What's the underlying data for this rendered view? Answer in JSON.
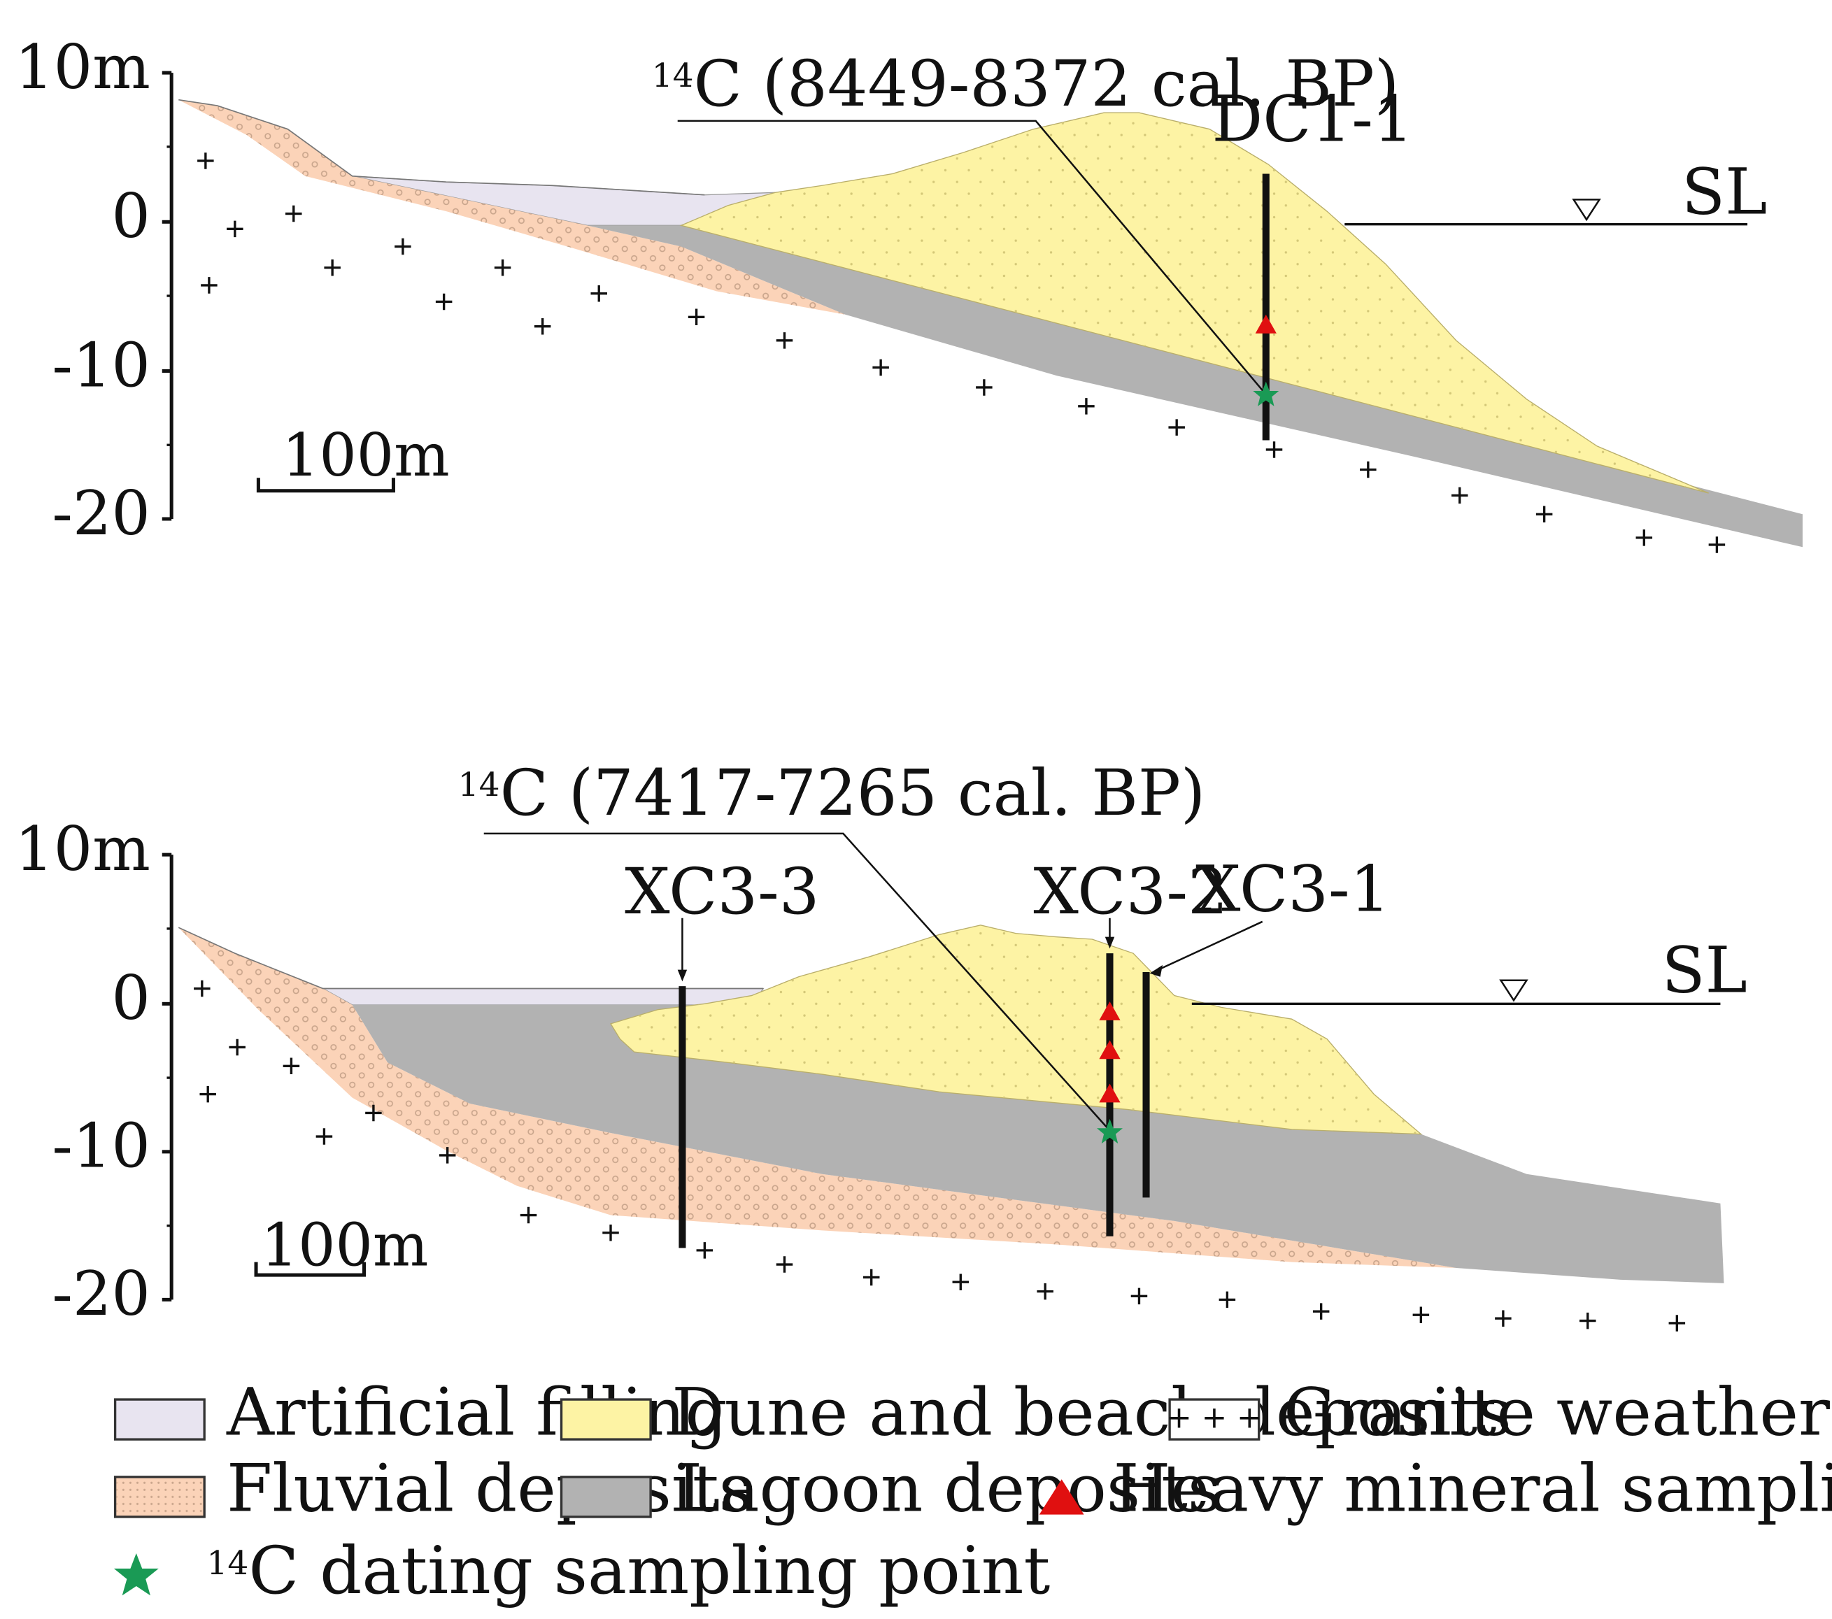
{
  "colors": {
    "artificial_filling": "#e8e4f0",
    "fluvial_deposits": "#fbd3b8",
    "fluvial_dots": "#c9a58c",
    "dune_beach": "#fdf3a4",
    "dune_dots": "#d4c878",
    "lagoon": "#b2b2b2",
    "heavy_mineral_marker": "#e01010",
    "c14_marker": "#1a9a55",
    "borehole": "#111111"
  },
  "top_section": {
    "axis": {
      "ticks": [
        "10m",
        "0",
        "-10",
        "-20"
      ]
    },
    "scale_bar": "100m",
    "sea_level": "SL",
    "date_label": {
      "iso": "14",
      "text": "C (8449-8372 cal. BP)"
    },
    "borehole": "DC1-1"
  },
  "bottom_section": {
    "axis": {
      "ticks": [
        "10m",
        "0",
        "-10",
        "-20"
      ]
    },
    "scale_bar": "100m",
    "sea_level": "SL",
    "date_label": {
      "iso": "14",
      "text": "C (7417-7265 cal. BP)"
    },
    "boreholes": [
      "XC3-3",
      "XC3-2",
      "XC3-1"
    ]
  },
  "legend": {
    "artificial_filling": "Artificial filling",
    "dune_beach": "Dune and beach deposits",
    "granite": "Granite weathering crust",
    "granite_symbol": "+ + +",
    "fluvial": "Fluvial deposits",
    "lagoon": "Lagoon deposits",
    "heavy_mineral": "Heavy mineral sampling point",
    "c14_iso": "14",
    "c14_dating": "C dating sampling point"
  }
}
